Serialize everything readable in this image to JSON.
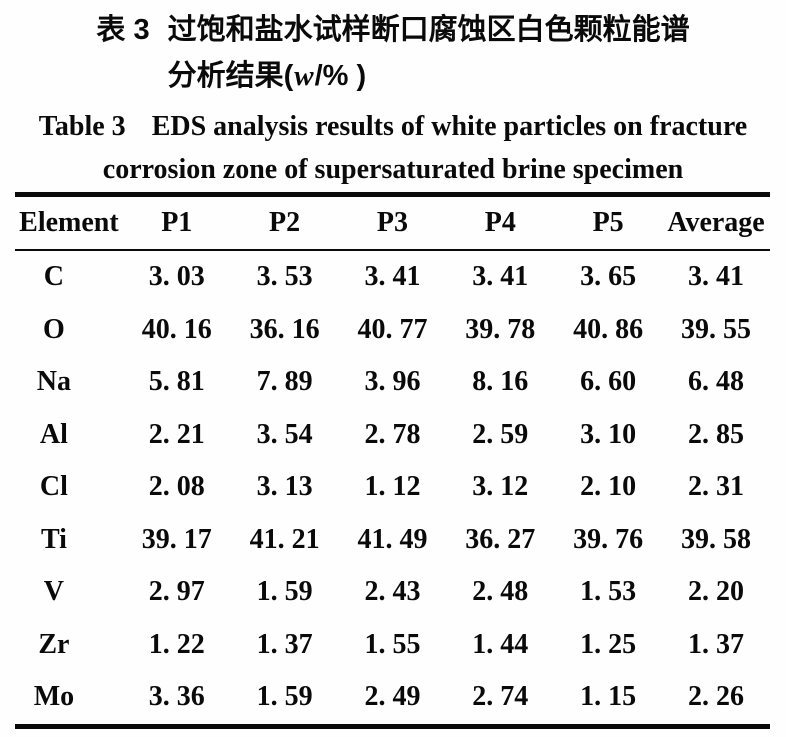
{
  "caption_zh": {
    "label": "表 3",
    "line1": "过饱和盐水试样断口腐蚀区白色颗粒能谱",
    "line2_prefix": "分析结果(",
    "line2_symbol": "w",
    "line2_suffix": "/% )"
  },
  "caption_en": {
    "label": "Table 3",
    "line1": "EDS analysis results of white particles on fracture",
    "line2": "corrosion zone of supersaturated brine specimen"
  },
  "table": {
    "columns": [
      "Element",
      "P1",
      "P2",
      "P3",
      "P4",
      "P5",
      "Average"
    ],
    "rows": [
      [
        "C",
        "3. 03",
        "3. 53",
        "3. 41",
        "3. 41",
        "3. 65",
        "3. 41"
      ],
      [
        "O",
        "40. 16",
        "36. 16",
        "40. 77",
        "39. 78",
        "40. 86",
        "39. 55"
      ],
      [
        "Na",
        "5. 81",
        "7. 89",
        "3. 96",
        "8. 16",
        "6. 60",
        "6. 48"
      ],
      [
        "Al",
        "2. 21",
        "3. 54",
        "2. 78",
        "2. 59",
        "3. 10",
        "2. 85"
      ],
      [
        "Cl",
        "2. 08",
        "3. 13",
        "1. 12",
        "3. 12",
        "2. 10",
        "2. 31"
      ],
      [
        "Ti",
        "39. 17",
        "41. 21",
        "41. 49",
        "36. 27",
        "39. 76",
        "39. 58"
      ],
      [
        "V",
        "2. 97",
        "1. 59",
        "2. 43",
        "2. 48",
        "1. 53",
        "2. 20"
      ],
      [
        "Zr",
        "1. 22",
        "1. 37",
        "1. 55",
        "1. 44",
        "1. 25",
        "1. 37"
      ],
      [
        "Mo",
        "3. 36",
        "1. 59",
        "2. 49",
        "2. 74",
        "1. 15",
        "2. 26"
      ]
    ]
  }
}
